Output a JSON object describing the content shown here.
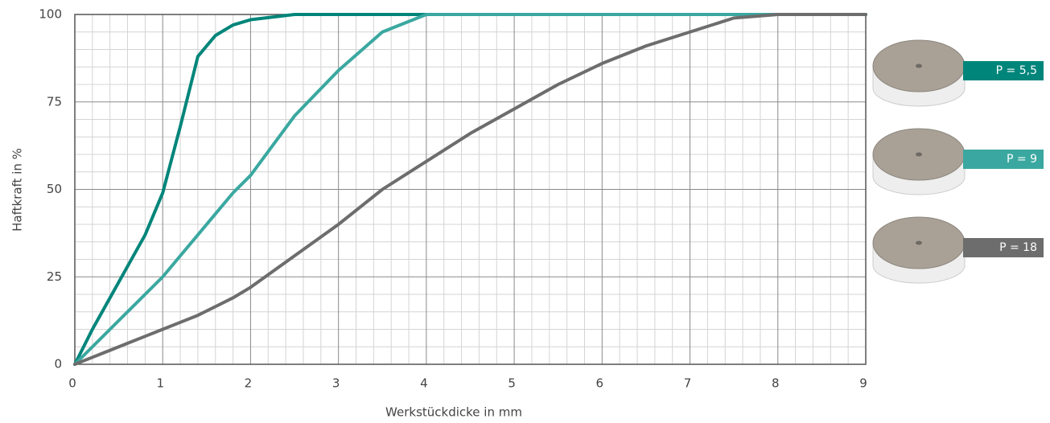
{
  "chart_data": {
    "type": "line",
    "xlabel": "Werkstückdicke in mm",
    "ylabel": "Haftkraft in %",
    "x": [
      0,
      0.2,
      0.4,
      0.6,
      0.8,
      1,
      1.2,
      1.4,
      1.6,
      1.8,
      2,
      2.5,
      3,
      3.5,
      4,
      4.5,
      5,
      5.5,
      6,
      6.5,
      7,
      7.5,
      8,
      8.5,
      9
    ],
    "series": [
      {
        "name": "P = 5,5",
        "color": "#00857a",
        "values": [
          0,
          10,
          19,
          28,
          37,
          49,
          68,
          88,
          94,
          97,
          98.5,
          100,
          100,
          100,
          100,
          100,
          100,
          100,
          100,
          100,
          100,
          100,
          100,
          100,
          100
        ]
      },
      {
        "name": "P = 9",
        "color": "#3aa8a0",
        "values": [
          0,
          5,
          10,
          15,
          20,
          25,
          31,
          37,
          43,
          49,
          54,
          71,
          84,
          95,
          100,
          100,
          100,
          100,
          100,
          100,
          100,
          100,
          100,
          100,
          100
        ]
      },
      {
        "name": "P = 18",
        "color": "#6d6d6d",
        "values": [
          0,
          2,
          4,
          6,
          8,
          10,
          12,
          14,
          16.5,
          19,
          22,
          31,
          40,
          50,
          58,
          66,
          73,
          80,
          86,
          91,
          95,
          99,
          100,
          100,
          100
        ]
      }
    ],
    "xlim": [
      0,
      9
    ],
    "xticks": [
      0,
      1,
      2,
      3,
      4,
      5,
      6,
      7,
      8,
      9
    ],
    "ylim": [
      0,
      100
    ],
    "yticks": [
      0,
      25,
      50,
      75,
      100
    ],
    "grid": true,
    "minor_grid": true,
    "legend": "right"
  }
}
